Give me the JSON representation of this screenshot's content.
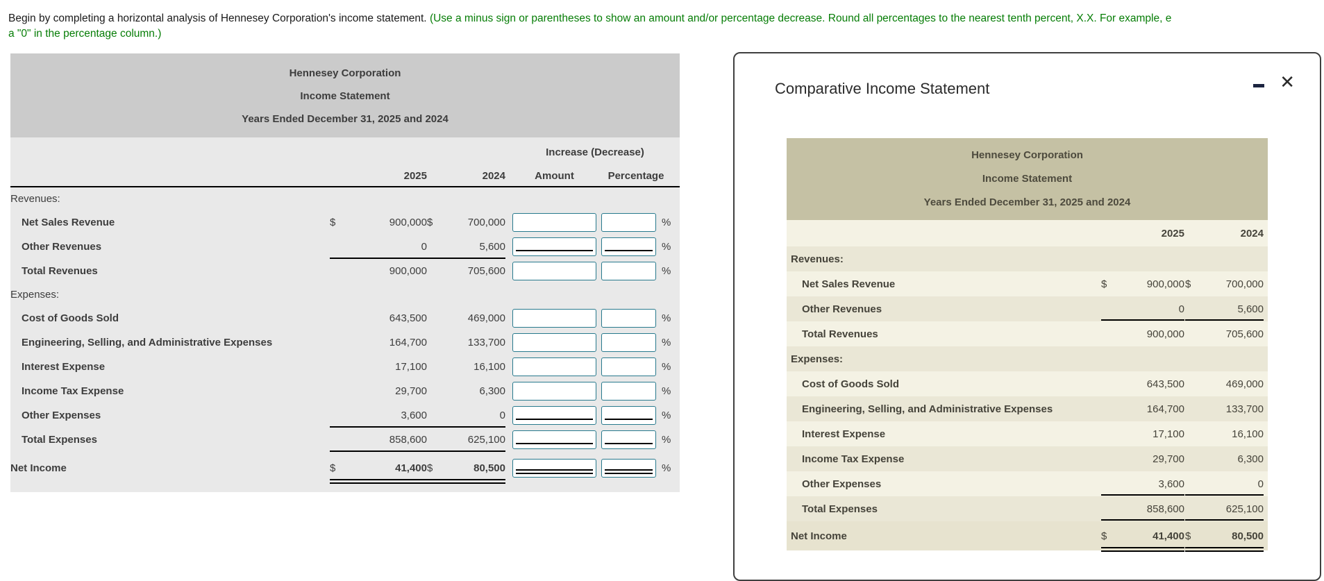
{
  "instructions": {
    "line1_black": "Begin by completing a horizontal analysis of Hennesey Corporation's income statement.",
    "line1_green": "(Use a minus sign or parentheses to show an amount and/or percentage decrease. Round all percentages to the nearest tenth percent, X.X. For example, e",
    "line2_green": "a \"0\" in the percentage column.)"
  },
  "income_statement": {
    "company": "Hennesey Corporation",
    "statement": "Income Statement",
    "period": "Years Ended December 31, 2025 and 2024",
    "col_year_1": "2025",
    "col_year_2": "2024",
    "rows": [
      {
        "label": "Revenues:",
        "type": "category"
      },
      {
        "label": "Net Sales Revenue",
        "type": "item",
        "d1": "$",
        "v1": "900,000",
        "d2": "$",
        "v2": "700,000"
      },
      {
        "label": "Other Revenues",
        "type": "item",
        "v1": "0",
        "v2": "5,600",
        "rule": "single"
      },
      {
        "label": "Total Revenues",
        "type": "item",
        "v1": "900,000",
        "v2": "705,600"
      },
      {
        "label": "Expenses:",
        "type": "category"
      },
      {
        "label": "Cost of Goods Sold",
        "type": "item",
        "v1": "643,500",
        "v2": "469,000"
      },
      {
        "label": "Engineering, Selling, and Administrative Expenses",
        "type": "item",
        "v1": "164,700",
        "v2": "133,700"
      },
      {
        "label": "Interest Expense",
        "type": "item",
        "v1": "17,100",
        "v2": "16,100"
      },
      {
        "label": "Income Tax Expense",
        "type": "item",
        "v1": "29,700",
        "v2": "6,300"
      },
      {
        "label": "Other Expenses",
        "type": "item",
        "v1": "3,600",
        "v2": "0",
        "rule": "single"
      },
      {
        "label": "Total Expenses",
        "type": "item",
        "v1": "858,600",
        "v2": "625,100",
        "rule": "single"
      },
      {
        "label": "Net Income",
        "type": "total",
        "d1": "$",
        "v1": "41,400",
        "d2": "$",
        "v2": "80,500",
        "rule": "double"
      }
    ]
  },
  "worksheet": {
    "increase_decrease_header": "Increase (Decrease)",
    "col_amount": "Amount",
    "col_percentage": "Percentage",
    "percent_sign": "%",
    "amount_input_value": "",
    "percentage_input_value": ""
  },
  "panel": {
    "title": "Comparative Income Statement",
    "minimize_icon": "–",
    "close_icon": "✕"
  },
  "colors": {
    "instruction_green": "#067d06",
    "worksheet_title_bg": "#cbcbcb",
    "worksheet_body_bg": "#e9e9e9",
    "input_border_teal": "#27798d",
    "panel_header_tan": "#c5c1a4",
    "panel_stripe_light": "#f4f2e4",
    "panel_stripe_dark": "#eae7d6"
  }
}
